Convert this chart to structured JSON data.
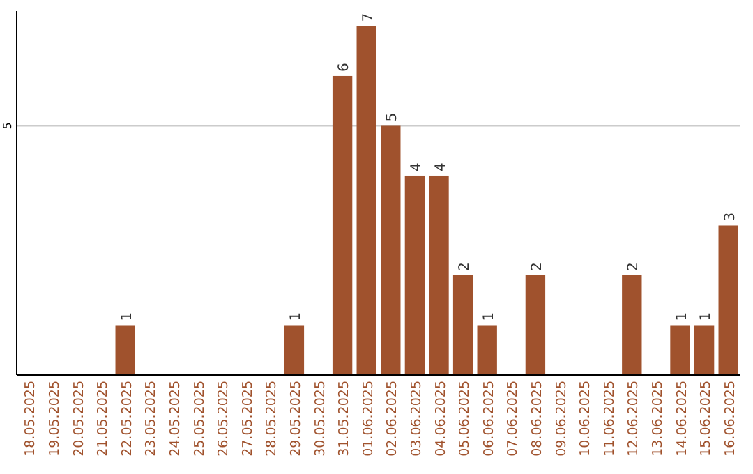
{
  "chart_data": {
    "type": "bar",
    "categories": [
      "18.05.2025",
      "19.05.2025",
      "20.05.2025",
      "21.05.2025",
      "22.05.2025",
      "23.05.2025",
      "24.05.2025",
      "25.05.2025",
      "26.05.2025",
      "27.05.2025",
      "28.05.2025",
      "29.05.2025",
      "30.05.2025",
      "31.05.2025",
      "01.06.2025",
      "02.06.2025",
      "03.06.2025",
      "04.06.2025",
      "05.06.2025",
      "06.06.2025",
      "07.06.2025",
      "08.06.2025",
      "09.06.2025",
      "10.06.2025",
      "11.06.2025",
      "12.06.2025",
      "13.06.2025",
      "14.06.2025",
      "15.06.2025",
      "16.06.2025"
    ],
    "values": [
      0,
      0,
      0,
      0,
      1,
      0,
      0,
      0,
      0,
      0,
      0,
      1,
      0,
      6,
      7,
      5,
      4,
      4,
      2,
      1,
      0,
      2,
      0,
      0,
      0,
      2,
      0,
      1,
      1,
      3
    ],
    "value_labels": [
      null,
      null,
      null,
      null,
      "1",
      null,
      null,
      null,
      null,
      null,
      null,
      "1",
      null,
      "6",
      "7",
      "5",
      "4",
      "4",
      "2",
      "1",
      null,
      "2",
      null,
      null,
      null,
      "2",
      null,
      "1",
      "1",
      "3"
    ],
    "color": "#a0522d",
    "ylim": [
      0,
      7.3
    ],
    "yticks": [
      5
    ],
    "grid": "y"
  }
}
